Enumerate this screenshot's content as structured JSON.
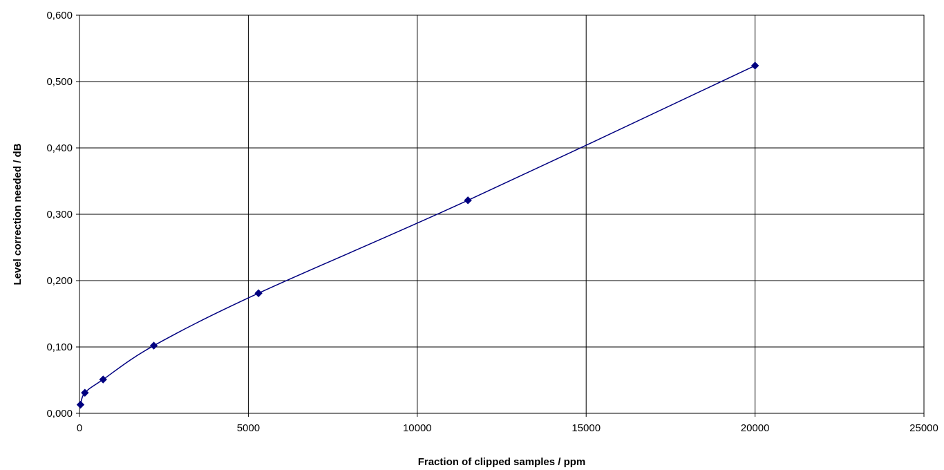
{
  "chart_data": {
    "type": "line",
    "title": "",
    "xlabel": "Fraction of clipped samples / ppm",
    "ylabel": "Level correction needed / dB",
    "xlim": [
      0,
      25000
    ],
    "ylim": [
      0,
      0.6
    ],
    "x_ticks": [
      "0",
      "5000",
      "10000",
      "15000",
      "20000",
      "25000"
    ],
    "y_ticks": [
      "0,000",
      "0,100",
      "0,200",
      "0,300",
      "0,400",
      "0,500",
      "0,600"
    ],
    "grid": true,
    "legend": "none",
    "smooth": true,
    "series": [
      {
        "color": "#000080",
        "marker": "diamond",
        "x": [
          30,
          160,
          700,
          2200,
          5300,
          11500,
          20000
        ],
        "y": [
          0.013,
          0.031,
          0.051,
          0.102,
          0.181,
          0.321,
          0.524
        ]
      }
    ]
  }
}
